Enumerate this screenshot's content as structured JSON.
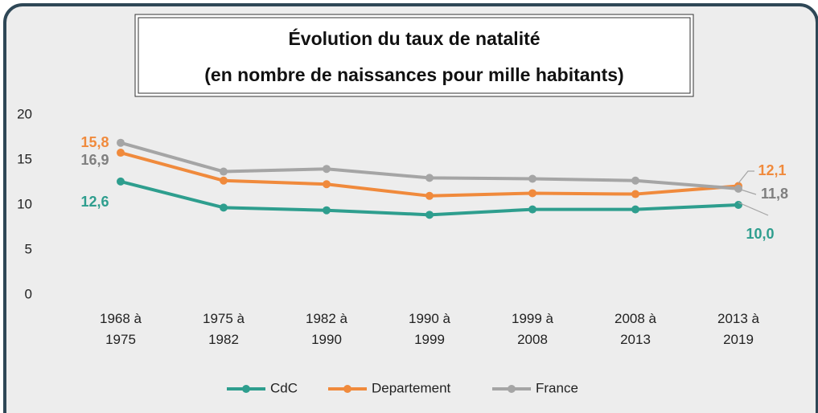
{
  "chart_data": {
    "type": "line",
    "title": "Évolution du taux de natalité",
    "subtitle": "(en nombre de naissances pour mille habitants)",
    "categories": [
      "1968 à 1975",
      "1975 à 1982",
      "1982 à 1990",
      "1990 à 1999",
      "1999 à 2008",
      "2008 à 2013",
      "2013 à 2019"
    ],
    "series": [
      {
        "name": "CdC",
        "color": "#2e9e8e",
        "values": [
          12.6,
          9.7,
          9.4,
          8.9,
          9.5,
          9.5,
          10.0
        ],
        "value_labels": [
          "12,6",
          null,
          null,
          null,
          null,
          null,
          "10,0"
        ]
      },
      {
        "name": "Departement",
        "color": "#f08a3c",
        "values": [
          15.8,
          12.7,
          12.3,
          11.0,
          11.3,
          11.2,
          12.1
        ],
        "value_labels": [
          "15,8",
          null,
          null,
          null,
          null,
          null,
          "12,1"
        ]
      },
      {
        "name": "France",
        "color": "#a5a5a5",
        "values": [
          16.9,
          13.7,
          14.0,
          13.0,
          12.9,
          12.7,
          11.8
        ],
        "value_labels": [
          "16,9",
          null,
          null,
          null,
          null,
          null,
          "11,8"
        ]
      }
    ],
    "ylim": [
      0,
      20
    ],
    "yticks": [
      0,
      5,
      10,
      15,
      20
    ],
    "grid": false,
    "legend": "bottom"
  }
}
